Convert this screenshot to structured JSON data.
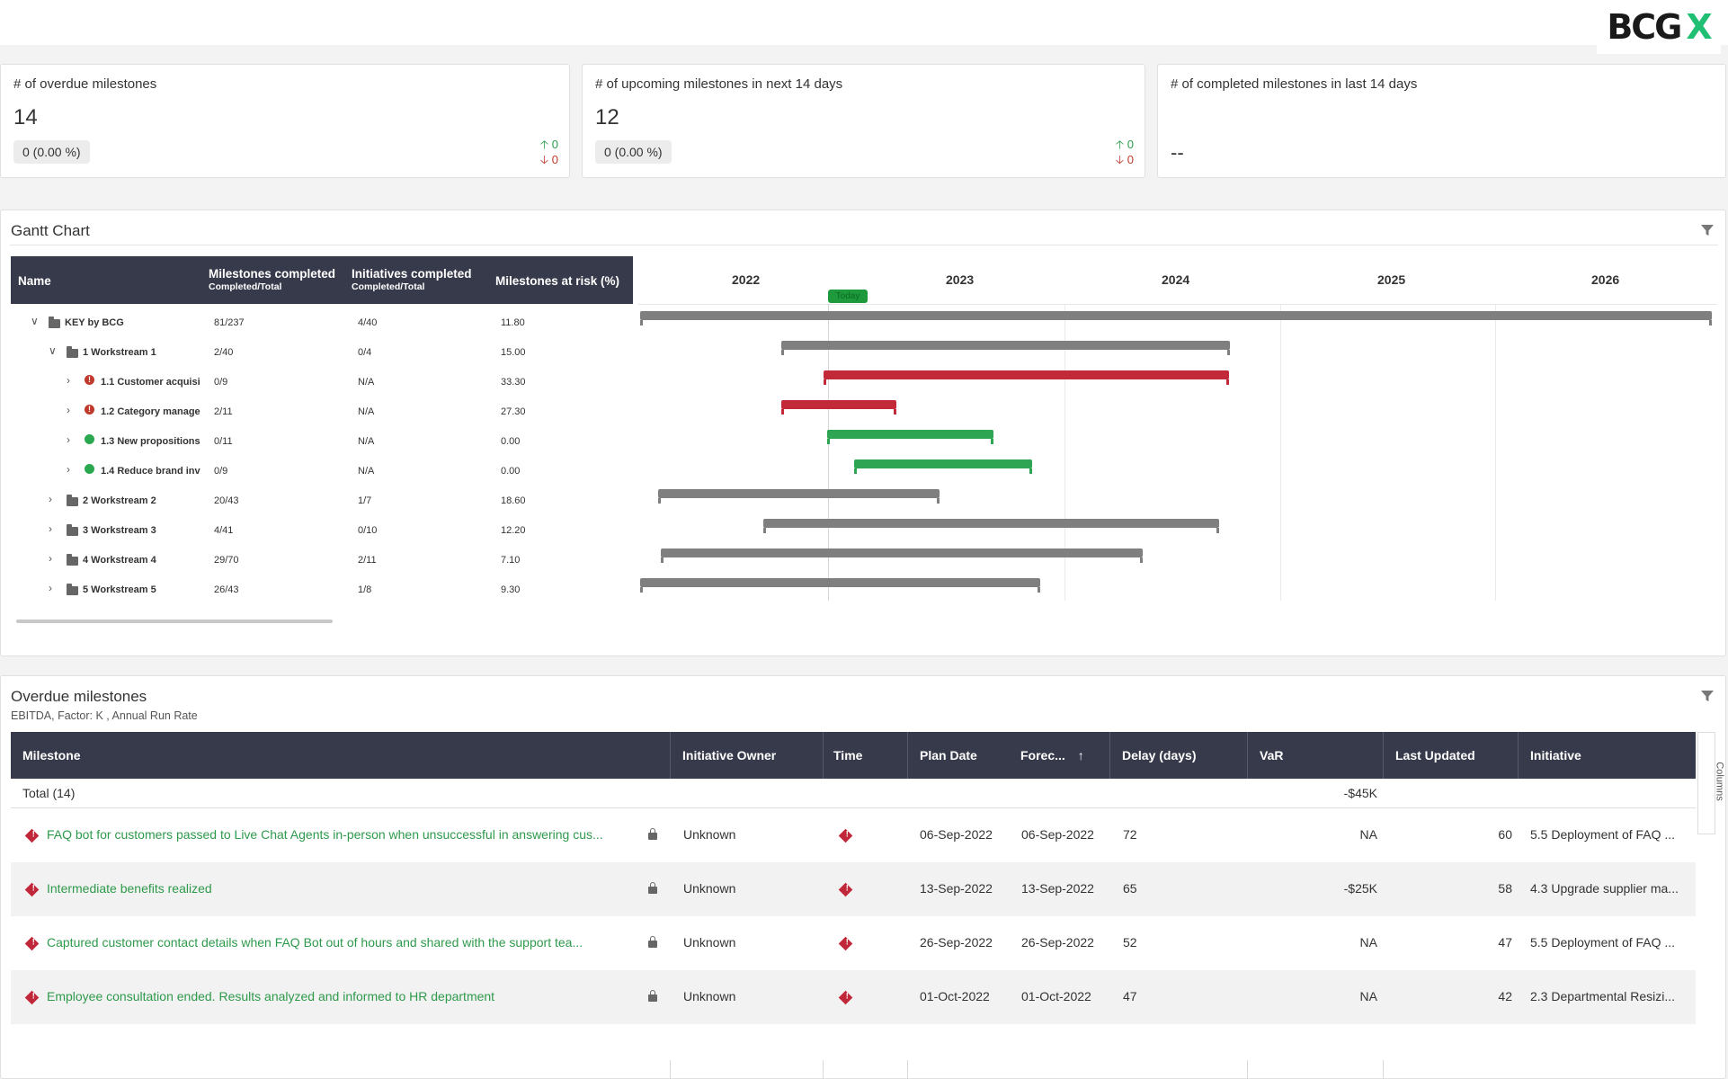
{
  "brand": {
    "logo_text_1": "BCG",
    "logo_text_2": "X",
    "accent": "#21bf73"
  },
  "kpis": [
    {
      "title": "# of overdue milestones",
      "value": "14",
      "badge": "0  (0.00 %)",
      "up": "0",
      "down": "0"
    },
    {
      "title": "# of upcoming milestones in next 14 days",
      "value": "12",
      "badge": "0  (0.00 %)",
      "up": "0",
      "down": "0"
    },
    {
      "title": "# of completed milestones in last 14 days",
      "value": "--"
    }
  ],
  "gantt": {
    "title": "Gantt Chart",
    "headers": {
      "name": "Name",
      "milestones": "Milestones completed",
      "milestones_sub": "Completed/Total",
      "initiatives": "Initiatives completed",
      "initiatives_sub": "Completed/Total",
      "risk": "Milestones at risk (%)"
    },
    "years": [
      "2022",
      "2023",
      "2024",
      "2025",
      "2026"
    ],
    "today_label": "Today",
    "rows": [
      {
        "name": "KEY by BCG",
        "milestones": "81/237",
        "initiatives": "4/40",
        "risk": "11.80"
      },
      {
        "name": "1 Workstream 1",
        "milestones": "2/40",
        "initiatives": "0/4",
        "risk": "15.00"
      },
      {
        "name": "1.1 Customer acquisi",
        "milestones": "0/9",
        "initiatives": "N/A",
        "risk": "33.30"
      },
      {
        "name": "1.2 Category manage",
        "milestones": "2/11",
        "initiatives": "N/A",
        "risk": "27.30"
      },
      {
        "name": "1.3 New propositions",
        "milestones": "0/11",
        "initiatives": "N/A",
        "risk": "0.00"
      },
      {
        "name": "1.4 Reduce brand inv",
        "milestones": "0/9",
        "initiatives": "N/A",
        "risk": "0.00"
      },
      {
        "name": "2 Workstream 2",
        "milestones": "20/43",
        "initiatives": "1/7",
        "risk": "18.60"
      },
      {
        "name": "3 Workstream 3",
        "milestones": "4/41",
        "initiatives": "0/10",
        "risk": "12.20"
      },
      {
        "name": "4 Workstream 4",
        "milestones": "29/70",
        "initiatives": "2/11",
        "risk": "7.10"
      },
      {
        "name": "5 Workstream 5",
        "milestones": "26/43",
        "initiatives": "1/8",
        "risk": "9.30"
      }
    ],
    "colors": {
      "gray": "#7f7f7f",
      "red": "#c22a3a",
      "green": "#2ea553"
    }
  },
  "overdue": {
    "title": "Overdue milestones",
    "subtitle": "EBITDA, Factor: K , Annual Run Rate",
    "headers": {
      "milestone": "Milestone",
      "owner": "Initiative Owner",
      "time": "Time",
      "plan": "Plan Date",
      "forecast": "Forec...",
      "sort_icon": "↑",
      "delay": "Delay (days)",
      "var": "VaR",
      "updated": "Last Updated",
      "initiative": "Initiative"
    },
    "total_label": "Total (14)",
    "total_var": "-$45K",
    "columns_label": "Columns",
    "rows": [
      {
        "milestone": "FAQ bot for customers passed to Live Chat Agents in-person when unsuccessful in answering cus...",
        "owner": "Unknown",
        "plan": "06-Sep-2022",
        "forecast": "06-Sep-2022",
        "delay": "72",
        "var": "NA",
        "updated": "60",
        "initiative": "5.5 Deployment of FAQ ..."
      },
      {
        "milestone": "Intermediate benefits realized",
        "owner": "Unknown",
        "plan": "13-Sep-2022",
        "forecast": "13-Sep-2022",
        "delay": "65",
        "var": "-$25K",
        "updated": "58",
        "initiative": "4.3 Upgrade supplier ma..."
      },
      {
        "milestone": "Captured customer contact details when FAQ Bot out of hours and shared with the support tea...",
        "owner": "Unknown",
        "plan": "26-Sep-2022",
        "forecast": "26-Sep-2022",
        "delay": "52",
        "var": "NA",
        "updated": "47",
        "initiative": "5.5 Deployment of FAQ ..."
      },
      {
        "milestone": "Employee consultation ended. Results analyzed and informed to HR department",
        "owner": "Unknown",
        "plan": "01-Oct-2022",
        "forecast": "01-Oct-2022",
        "delay": "47",
        "var": "NA",
        "updated": "42",
        "initiative": "2.3 Departmental Resizi..."
      }
    ]
  }
}
